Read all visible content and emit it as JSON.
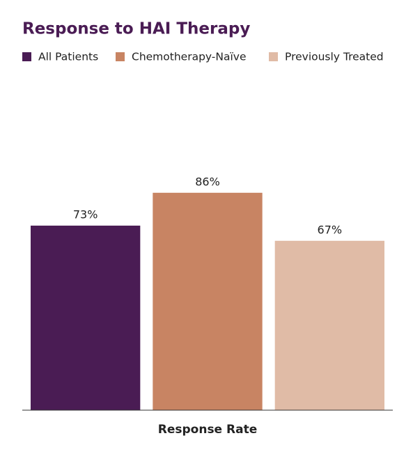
{
  "chart_data": {
    "type": "bar",
    "title": "Response to HAI Therapy",
    "categories": [
      "Response Rate"
    ],
    "series": [
      {
        "name": "All Patients",
        "color": "#4a1c54",
        "values": [
          73
        ],
        "value_labels": [
          "73%"
        ]
      },
      {
        "name": "Chemotherapy-Naïve",
        "color": "#c88463",
        "values": [
          86
        ],
        "value_labels": [
          "86%"
        ]
      },
      {
        "name": "Previously Treated",
        "color": "#e0bba6",
        "values": [
          67
        ],
        "value_labels": [
          "67%"
        ]
      }
    ]
  }
}
